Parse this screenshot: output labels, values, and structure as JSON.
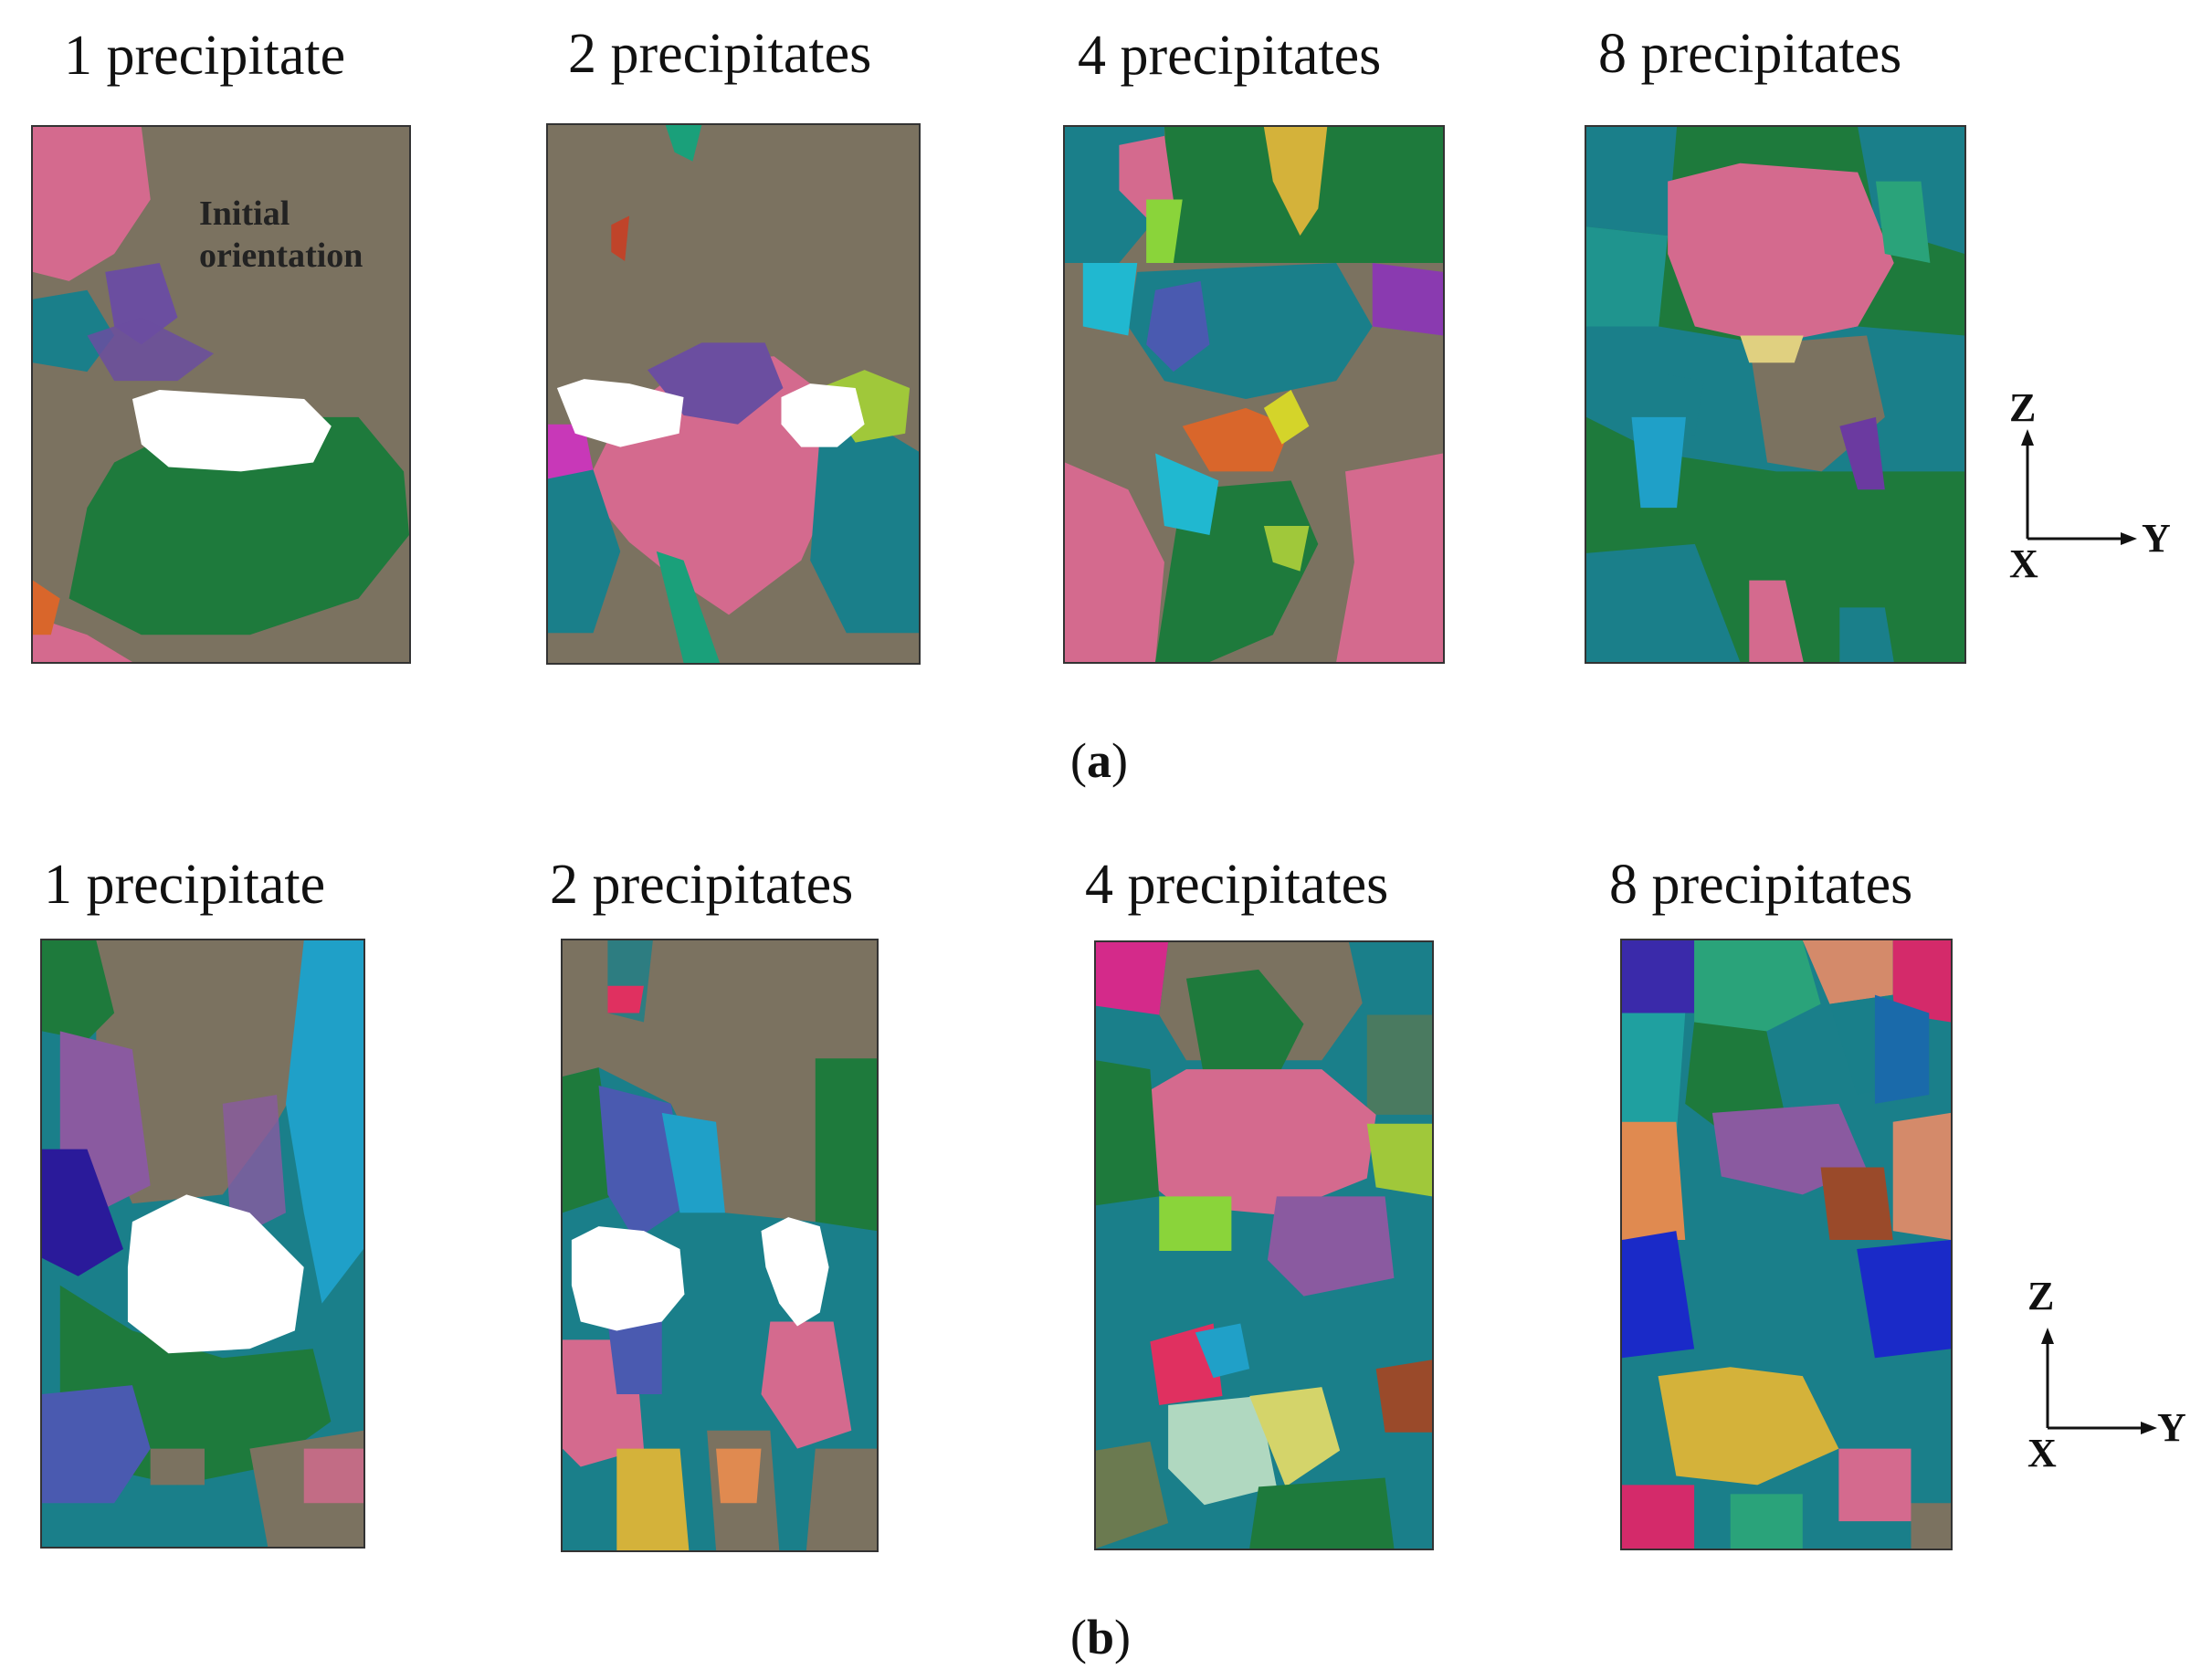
{
  "row_a": {
    "panels": [
      {
        "label": "1 precipitate",
        "annotation_line1": "Initial",
        "annotation_line2": "orientation"
      },
      {
        "label": "2 precipitates"
      },
      {
        "label": "4 precipitates"
      },
      {
        "label": "8 precipitates"
      }
    ],
    "caption_open": "(",
    "caption_letter": "a",
    "caption_close": ")"
  },
  "row_b": {
    "panels": [
      {
        "label": "1 precipitate"
      },
      {
        "label": "2 precipitates"
      },
      {
        "label": "4 precipitates"
      },
      {
        "label": "8 precipitates"
      }
    ],
    "caption_open": "(",
    "caption_letter": "b",
    "caption_close": ")"
  },
  "axes": {
    "z": "Z",
    "y": "Y",
    "x": "X"
  },
  "colors": {
    "matrix_brown": "#7b7260",
    "green": "#1e7a3c",
    "pink": "#d46a8e",
    "teal": "#1a7f8a",
    "purple": "#6b4ea0",
    "precipitate": "#ffffff"
  }
}
